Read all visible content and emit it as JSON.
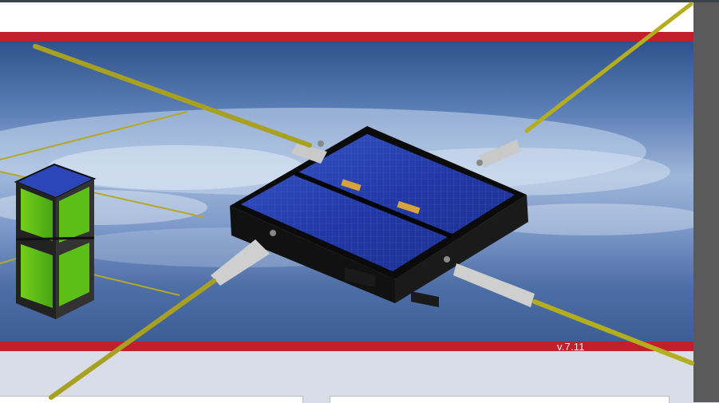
{
  "banner": {
    "version_label": "v.7.11"
  },
  "colors": {
    "top_strip": "#3b4449",
    "red_band": "#c0202c",
    "right_panel": "#5a5a5a",
    "page_background": "#d8dde7",
    "antenna": "#a8a020"
  },
  "icons": {
    "banner_art": "satellite-illustration"
  }
}
